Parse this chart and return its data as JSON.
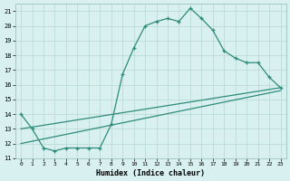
{
  "xlabel": "Humidex (Indice chaleur)",
  "line1_x": [
    0,
    1,
    2,
    3,
    4,
    5,
    6,
    7,
    8,
    9,
    10,
    11,
    12,
    13,
    14,
    15,
    16,
    17,
    18,
    19,
    20,
    21,
    22,
    23
  ],
  "line1_y": [
    14.0,
    13.0,
    11.7,
    11.5,
    11.7,
    11.7,
    11.7,
    11.7,
    13.3,
    16.7,
    18.5,
    20.0,
    20.3,
    20.5,
    20.3,
    21.2,
    20.5,
    19.7,
    18.3,
    17.8,
    17.5,
    17.5,
    16.5,
    15.8
  ],
  "line2_x": [
    0,
    23
  ],
  "line2_y": [
    13.0,
    15.8
  ],
  "line3_x": [
    0,
    23
  ],
  "line3_y": [
    12.0,
    15.6
  ],
  "line_color": "#2e8b7a",
  "bg_color": "#d8f0ef",
  "grid_color": "#b8d8d0",
  "xlim": [
    -0.5,
    23.5
  ],
  "ylim": [
    11,
    21.5
  ],
  "xtick_labels": [
    "0",
    "1",
    "2",
    "3",
    "4",
    "5",
    "6",
    "7",
    "8",
    "9",
    "10",
    "11",
    "12",
    "13",
    "14",
    "15",
    "16",
    "17",
    "18",
    "19",
    "20",
    "21",
    "22",
    "23"
  ],
  "xtick_positions": [
    0,
    1,
    2,
    3,
    4,
    5,
    6,
    7,
    8,
    9,
    10,
    11,
    12,
    13,
    14,
    15,
    16,
    17,
    18,
    19,
    20,
    21,
    22,
    23
  ],
  "ytick_positions": [
    11,
    12,
    13,
    14,
    15,
    16,
    17,
    18,
    19,
    20,
    21
  ],
  "ytick_labels": [
    "11",
    "12",
    "13",
    "14",
    "15",
    "16",
    "17",
    "18",
    "19",
    "20",
    "21"
  ]
}
